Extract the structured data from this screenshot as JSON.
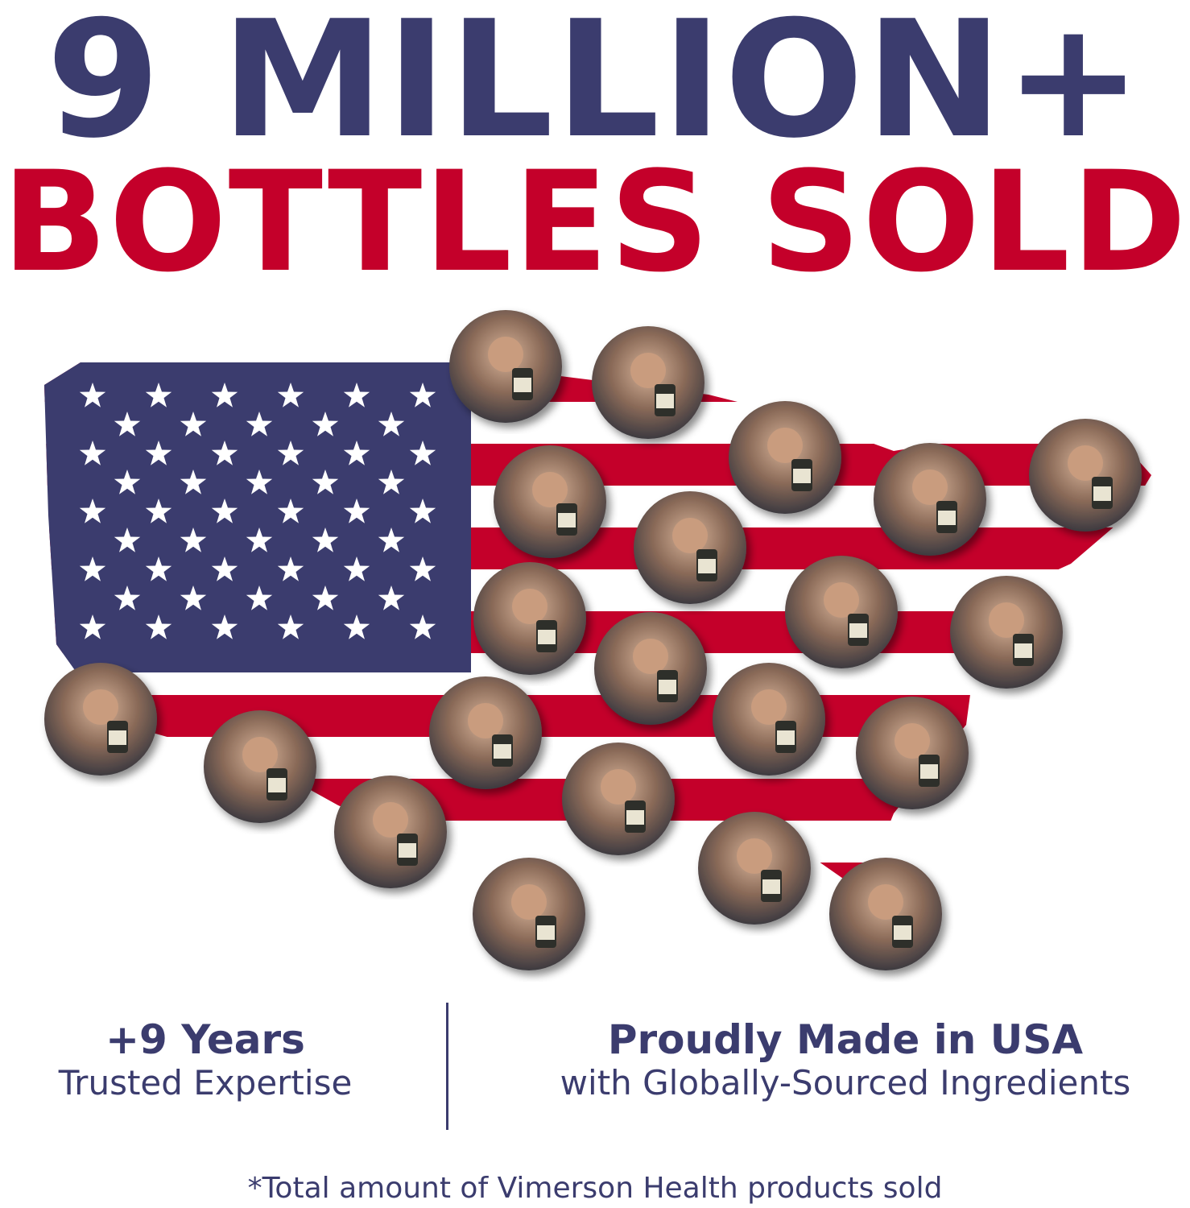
{
  "headline": {
    "line1": "9 MILLION+",
    "line2": "BOTTLES SOLD"
  },
  "colors": {
    "navy": "#3b3c6e",
    "red": "#c4002a",
    "white": "#ffffff"
  },
  "map": {
    "description_icon": "usa-flag-map-icon",
    "customer_photo_count": 21
  },
  "stats": [
    {
      "title": "+9 Years",
      "subtitle": "Trusted Expertise"
    },
    {
      "title": "Proudly Made in USA",
      "subtitle": "with Globally-Sourced Ingredients"
    }
  ],
  "footnote": "*Total amount of Vimerson Health products sold"
}
